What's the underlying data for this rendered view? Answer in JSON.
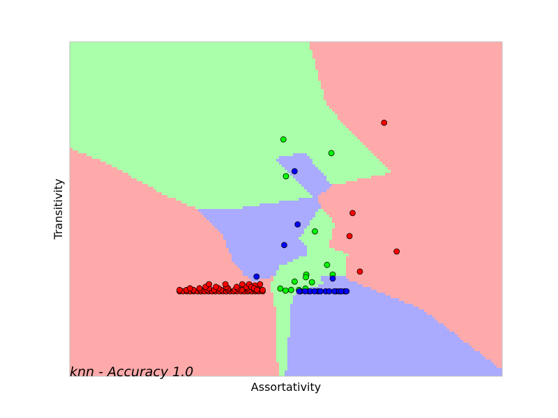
{
  "chart_data": {
    "type": "scatter",
    "title": "",
    "xlabel": "Assortativity",
    "ylabel": "Transitivity",
    "annotation": "knn - Accuracy 1.0",
    "xlim": [
      0,
      1
    ],
    "ylim": [
      0,
      1
    ],
    "grid": false,
    "legend": "none",
    "ticks_visible": false,
    "class_colors": {
      "red": {
        "point": "#ff0000",
        "region": "#ffaaaa"
      },
      "green": {
        "point": "#00ff00",
        "region": "#aaffaa"
      },
      "blue": {
        "point": "#0000ff",
        "region": "#aaaaff"
      }
    },
    "series": [
      {
        "color": "#ff0000",
        "x": [
          0.254,
          0.262,
          0.271,
          0.279,
          0.287,
          0.296,
          0.304,
          0.312,
          0.321,
          0.329,
          0.337,
          0.346,
          0.354,
          0.362,
          0.371,
          0.379,
          0.387,
          0.396,
          0.404,
          0.412,
          0.421,
          0.429,
          0.437,
          0.446,
          0.254,
          0.27,
          0.286,
          0.302,
          0.318,
          0.334,
          0.35,
          0.366,
          0.382,
          0.398,
          0.414,
          0.43,
          0.446,
          0.278,
          0.3,
          0.322,
          0.344,
          0.366,
          0.388,
          0.41,
          0.432,
          0.314,
          0.338,
          0.362,
          0.386,
          0.408,
          0.434,
          0.322,
          0.36,
          0.399,
          0.415,
          0.44,
          0.428,
          0.42,
          0.426,
          0.433,
          0.727,
          0.654,
          0.647,
          0.756,
          0.671
        ],
        "y": [
          0.254,
          0.254,
          0.254,
          0.254,
          0.254,
          0.254,
          0.254,
          0.254,
          0.254,
          0.254,
          0.254,
          0.254,
          0.254,
          0.254,
          0.254,
          0.254,
          0.254,
          0.254,
          0.254,
          0.254,
          0.254,
          0.254,
          0.254,
          0.254,
          0.258,
          0.258,
          0.258,
          0.258,
          0.258,
          0.258,
          0.258,
          0.258,
          0.258,
          0.258,
          0.258,
          0.258,
          0.258,
          0.263,
          0.263,
          0.263,
          0.263,
          0.263,
          0.263,
          0.263,
          0.263,
          0.267,
          0.267,
          0.267,
          0.267,
          0.267,
          0.267,
          0.275,
          0.275,
          0.275,
          0.275,
          0.275,
          0.271,
          0.267,
          0.263,
          0.258,
          0.758,
          0.488,
          0.419,
          0.373,
          0.313
        ]
      },
      {
        "color": "#00ff00",
        "x": [
          0.494,
          0.605,
          0.5,
          0.567,
          0.595,
          0.547,
          0.608,
          0.546,
          0.52,
          0.56,
          0.53,
          0.545,
          0.487,
          0.499,
          0.512
        ],
        "y": [
          0.708,
          0.667,
          0.598,
          0.433,
          0.333,
          0.304,
          0.304,
          0.296,
          0.283,
          0.281,
          0.258,
          0.262,
          0.262,
          0.256,
          0.258
        ],
        "sizes_note": ""
      },
      {
        "color": "#0000ff",
        "x": [
          0.52,
          0.527,
          0.496,
          0.432,
          0.608,
          0.533,
          0.553,
          0.574,
          0.592,
          0.616,
          0.556,
          0.544,
          0.566,
          0.58,
          0.6,
          0.612,
          0.636,
          0.623,
          0.628,
          0.64,
          0.531
        ],
        "y": [
          0.613,
          0.454,
          0.392,
          0.298,
          0.292,
          0.254,
          0.254,
          0.254,
          0.254,
          0.254,
          0.254,
          0.254,
          0.254,
          0.254,
          0.254,
          0.254,
          0.254,
          0.254,
          0.254,
          0.254,
          0.254
        ]
      }
    ]
  }
}
